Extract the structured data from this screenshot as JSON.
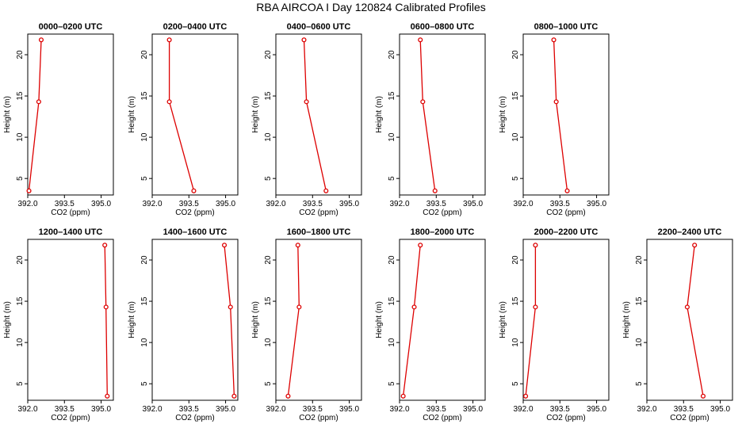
{
  "title": "RBA AIRCOA I  Day 120824  Calibrated Profiles",
  "colors": {
    "profile": "#dd0000",
    "axes": "#000000"
  },
  "chart_data": [
    {
      "type": "line",
      "title": "0000–0200 UTC",
      "xlabel": "CO2 (ppm)",
      "ylabel": "Height (m)",
      "xlim": [
        392.0,
        395.5
      ],
      "ylim": [
        3,
        22.5
      ],
      "xticks": [
        "392.0",
        "393.5",
        "395.0"
      ],
      "yticks": [
        "5",
        "10",
        "15",
        "20"
      ],
      "series": [
        {
          "x": [
            392.05,
            392.45,
            392.55
          ],
          "y": [
            3.5,
            14.3,
            21.8
          ]
        }
      ]
    },
    {
      "type": "line",
      "title": "0200–0400 UTC",
      "xlabel": "CO2 (ppm)",
      "ylabel": "Height (m)",
      "xlim": [
        392.0,
        395.5
      ],
      "ylim": [
        3,
        22.5
      ],
      "xticks": [
        "392.0",
        "393.5",
        "395.0"
      ],
      "yticks": [
        "5",
        "10",
        "15",
        "20"
      ],
      "series": [
        {
          "x": [
            393.7,
            392.7,
            392.7
          ],
          "y": [
            3.5,
            14.3,
            21.8
          ]
        }
      ]
    },
    {
      "type": "line",
      "title": "0400–0600 UTC",
      "xlabel": "CO2 (ppm)",
      "ylabel": "Height (m)",
      "xlim": [
        392.0,
        395.5
      ],
      "ylim": [
        3,
        22.5
      ],
      "xticks": [
        "392.0",
        "393.5",
        "395.0"
      ],
      "yticks": [
        "5",
        "10",
        "15",
        "20"
      ],
      "series": [
        {
          "x": [
            394.05,
            393.25,
            393.15
          ],
          "y": [
            3.5,
            14.3,
            21.8
          ]
        }
      ]
    },
    {
      "type": "line",
      "title": "0600–0800 UTC",
      "xlabel": "CO2 (ppm)",
      "ylabel": "Height (m)",
      "xlim": [
        392.0,
        395.5
      ],
      "ylim": [
        3,
        22.5
      ],
      "xticks": [
        "392.0",
        "393.5",
        "395.0"
      ],
      "yticks": [
        "5",
        "10",
        "15",
        "20"
      ],
      "series": [
        {
          "x": [
            393.45,
            392.95,
            392.85
          ],
          "y": [
            3.5,
            14.3,
            21.8
          ]
        }
      ]
    },
    {
      "type": "line",
      "title": "0800–1000 UTC",
      "xlabel": "CO2 (ppm)",
      "ylabel": "Height (m)",
      "xlim": [
        392.0,
        395.5
      ],
      "ylim": [
        3,
        22.5
      ],
      "xticks": [
        "392.0",
        "393.5",
        "395.0"
      ],
      "yticks": [
        "5",
        "10",
        "15",
        "20"
      ],
      "series": [
        {
          "x": [
            393.8,
            393.35,
            393.25
          ],
          "y": [
            3.5,
            14.3,
            21.8
          ]
        }
      ]
    },
    {
      "type": "line",
      "title": "1200–1400 UTC",
      "xlabel": "CO2 (ppm)",
      "ylabel": "Height (m)",
      "xlim": [
        392.0,
        395.5
      ],
      "ylim": [
        3,
        22.5
      ],
      "xticks": [
        "392.0",
        "393.5",
        "395.0"
      ],
      "yticks": [
        "5",
        "10",
        "15",
        "20"
      ],
      "series": [
        {
          "x": [
            395.25,
            395.2,
            395.15
          ],
          "y": [
            3.5,
            14.3,
            21.8
          ]
        }
      ]
    },
    {
      "type": "line",
      "title": "1400–1600 UTC",
      "xlabel": "CO2 (ppm)",
      "ylabel": "Height (m)",
      "xlim": [
        392.0,
        395.5
      ],
      "ylim": [
        3,
        22.5
      ],
      "xticks": [
        "392.0",
        "393.5",
        "395.0"
      ],
      "yticks": [
        "5",
        "10",
        "15",
        "20"
      ],
      "series": [
        {
          "x": [
            395.35,
            395.2,
            394.95
          ],
          "y": [
            3.5,
            14.3,
            21.8
          ]
        }
      ]
    },
    {
      "type": "line",
      "title": "1600–1800 UTC",
      "xlabel": "CO2 (ppm)",
      "ylabel": "Height (m)",
      "xlim": [
        392.0,
        395.5
      ],
      "ylim": [
        3,
        22.5
      ],
      "xticks": [
        "392.0",
        "393.5",
        "395.0"
      ],
      "yticks": [
        "5",
        "10",
        "15",
        "20"
      ],
      "series": [
        {
          "x": [
            392.5,
            392.95,
            392.9
          ],
          "y": [
            3.5,
            14.3,
            21.8
          ]
        }
      ]
    },
    {
      "type": "line",
      "title": "1800–2000 UTC",
      "xlabel": "CO2 (ppm)",
      "ylabel": "Height (m)",
      "xlim": [
        392.0,
        395.5
      ],
      "ylim": [
        3,
        22.5
      ],
      "xticks": [
        "392.0",
        "393.5",
        "395.0"
      ],
      "yticks": [
        "5",
        "10",
        "15",
        "20"
      ],
      "series": [
        {
          "x": [
            392.15,
            392.6,
            392.85
          ],
          "y": [
            3.5,
            14.3,
            21.8
          ]
        }
      ]
    },
    {
      "type": "line",
      "title": "2000–2200 UTC",
      "xlabel": "CO2 (ppm)",
      "ylabel": "Height (m)",
      "xlim": [
        392.0,
        395.5
      ],
      "ylim": [
        3,
        22.5
      ],
      "xticks": [
        "392.0",
        "393.5",
        "395.0"
      ],
      "yticks": [
        "5",
        "10",
        "15",
        "20"
      ],
      "series": [
        {
          "x": [
            392.1,
            392.5,
            392.5
          ],
          "y": [
            3.5,
            14.3,
            21.8
          ]
        }
      ]
    },
    {
      "type": "line",
      "title": "2200–2400 UTC",
      "xlabel": "CO2 (ppm)",
      "ylabel": "Height (m)",
      "xlim": [
        392.0,
        395.5
      ],
      "ylim": [
        3,
        22.5
      ],
      "xticks": [
        "392.0",
        "393.5",
        "395.0"
      ],
      "yticks": [
        "5",
        "10",
        "15",
        "20"
      ],
      "series": [
        {
          "x": [
            394.3,
            393.65,
            393.95
          ],
          "y": [
            3.5,
            14.3,
            21.8
          ]
        }
      ]
    }
  ]
}
